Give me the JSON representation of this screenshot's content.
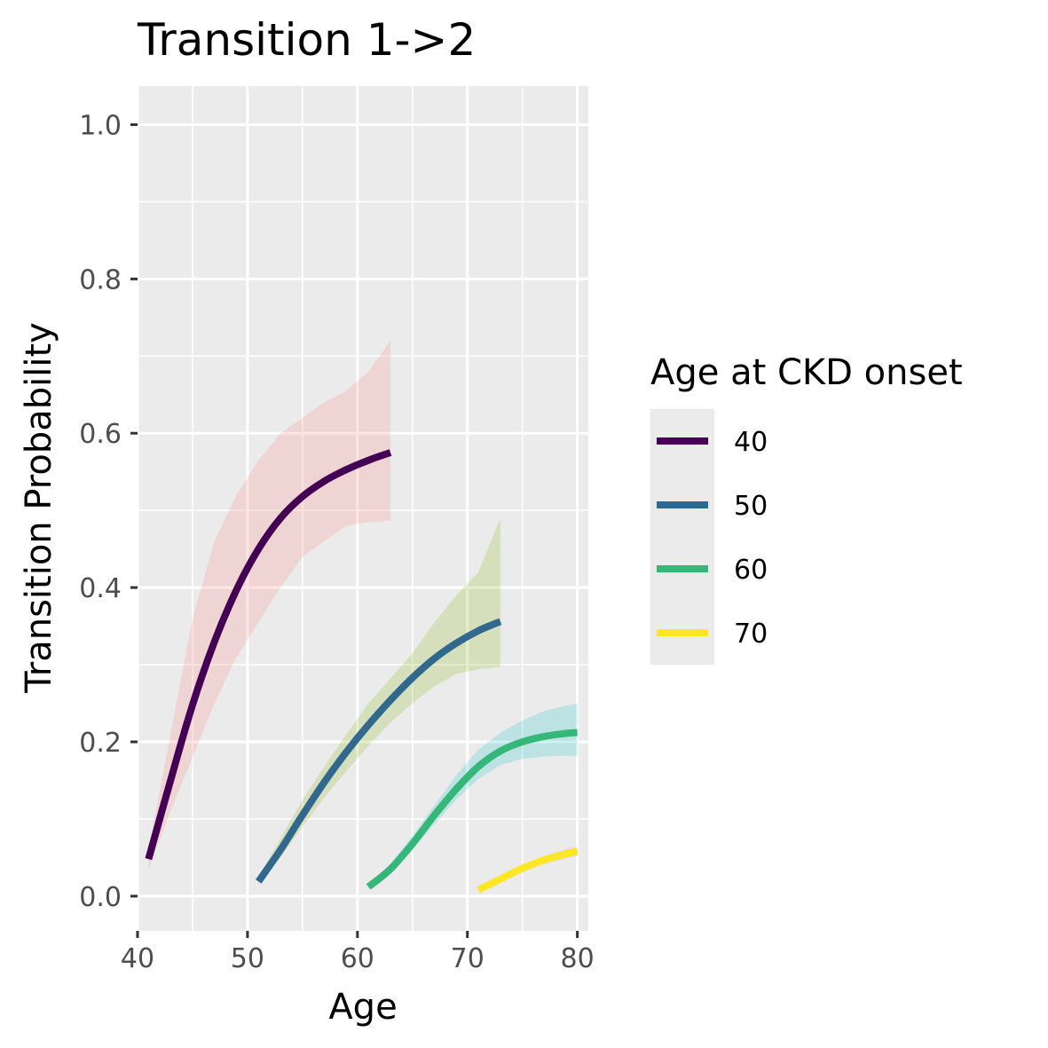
{
  "chart_data": {
    "type": "line",
    "title": "Transition 1->2",
    "xlabel": "Age",
    "ylabel": "Transition Probability",
    "xlim": [
      40,
      81
    ],
    "ylim": [
      -0.045,
      1.05
    ],
    "x_ticks": [
      40,
      50,
      60,
      70,
      80
    ],
    "x_tick_labels": [
      "40",
      "50",
      "60",
      "70",
      "80"
    ],
    "y_ticks": [
      0.0,
      0.2,
      0.4,
      0.6,
      0.8,
      1.0
    ],
    "y_tick_labels": [
      "0.0",
      "0.2",
      "0.4",
      "0.6",
      "0.8",
      "1.0"
    ],
    "grid": true,
    "legend": {
      "title": "Age at CKD onset",
      "position": "right"
    },
    "series": [
      {
        "name": "40",
        "color": "#440154",
        "ribbon_color": "#F8766D",
        "x": [
          41,
          43,
          45,
          47,
          49,
          51,
          53,
          55,
          57,
          59,
          61,
          63
        ],
        "y": [
          0.048,
          0.15,
          0.248,
          0.33,
          0.397,
          0.45,
          0.49,
          0.518,
          0.538,
          0.553,
          0.565,
          0.575
        ],
        "lower": [
          0.035,
          0.11,
          0.18,
          0.25,
          0.31,
          0.355,
          0.4,
          0.44,
          0.46,
          0.48,
          0.485,
          0.487
        ],
        "upper": [
          0.06,
          0.21,
          0.36,
          0.46,
          0.52,
          0.565,
          0.6,
          0.62,
          0.64,
          0.655,
          0.68,
          0.72
        ]
      },
      {
        "name": "50",
        "color": "#31688E",
        "ribbon_color": "#7CAE00",
        "x": [
          51,
          53,
          55,
          57,
          59,
          61,
          63,
          65,
          67,
          69,
          71,
          73
        ],
        "y": [
          0.019,
          0.06,
          0.105,
          0.148,
          0.187,
          0.222,
          0.254,
          0.283,
          0.308,
          0.328,
          0.344,
          0.356
        ],
        "lower": [
          0.015,
          0.05,
          0.09,
          0.128,
          0.162,
          0.195,
          0.225,
          0.25,
          0.272,
          0.288,
          0.294,
          0.297
        ],
        "upper": [
          0.025,
          0.075,
          0.125,
          0.168,
          0.21,
          0.25,
          0.282,
          0.315,
          0.355,
          0.39,
          0.42,
          0.49
        ]
      },
      {
        "name": "60",
        "color": "#35B779",
        "ribbon_color": "#00BFC4",
        "x": [
          61,
          63,
          65,
          67,
          69,
          71,
          73,
          75,
          77,
          79,
          80
        ],
        "y": [
          0.012,
          0.035,
          0.068,
          0.105,
          0.139,
          0.168,
          0.188,
          0.2,
          0.207,
          0.211,
          0.212
        ],
        "lower": [
          0.01,
          0.03,
          0.06,
          0.093,
          0.125,
          0.152,
          0.17,
          0.178,
          0.181,
          0.182,
          0.182
        ],
        "upper": [
          0.015,
          0.042,
          0.078,
          0.118,
          0.157,
          0.19,
          0.212,
          0.228,
          0.24,
          0.247,
          0.25
        ]
      },
      {
        "name": "70",
        "color": "#FDE725",
        "ribbon_color": "#C77CFF",
        "x": [
          71,
          73,
          75,
          77,
          79,
          80
        ],
        "y": [
          0.008,
          0.022,
          0.036,
          0.047,
          0.055,
          0.058
        ],
        "lower": [
          0.007,
          0.02,
          0.032,
          0.042,
          0.049,
          0.052
        ],
        "upper": [
          0.01,
          0.025,
          0.04,
          0.052,
          0.061,
          0.064
        ]
      }
    ]
  }
}
